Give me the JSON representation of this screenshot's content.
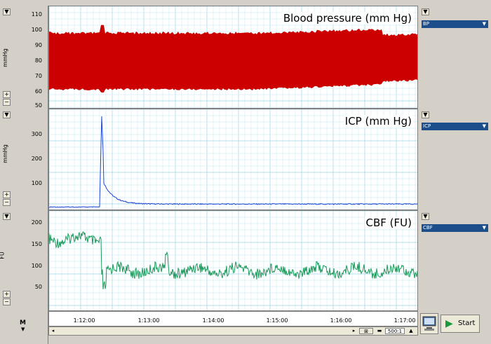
{
  "channels": [
    {
      "title": "Blood pressure (mm Hg)",
      "unit": "mmHg",
      "selector": "BP",
      "color": "#cc0000",
      "y_ticks": [
        "110",
        "100",
        "90",
        "80",
        "70",
        "60",
        "50"
      ]
    },
    {
      "title": "ICP (mm Hg)",
      "unit": "mmHg",
      "selector": "ICP",
      "color": "#1a44d6",
      "y_ticks": [
        "300",
        "200",
        "100"
      ]
    },
    {
      "title": "CBF (FU)",
      "unit": "FU",
      "selector": "CBF",
      "color": "#1a9a5a",
      "y_ticks": [
        "200",
        "150",
        "100",
        "50"
      ]
    }
  ],
  "time_axis": {
    "labels": [
      "1:12:00",
      "1:13:00",
      "1:14:00",
      "1:15:00",
      "1:16:00",
      "1:17:00"
    ]
  },
  "controls": {
    "plus": "+",
    "minus": "−",
    "dropdown": "▼",
    "marker": "M",
    "start_label": "Start",
    "zoom_ratio": "500:1"
  }
}
